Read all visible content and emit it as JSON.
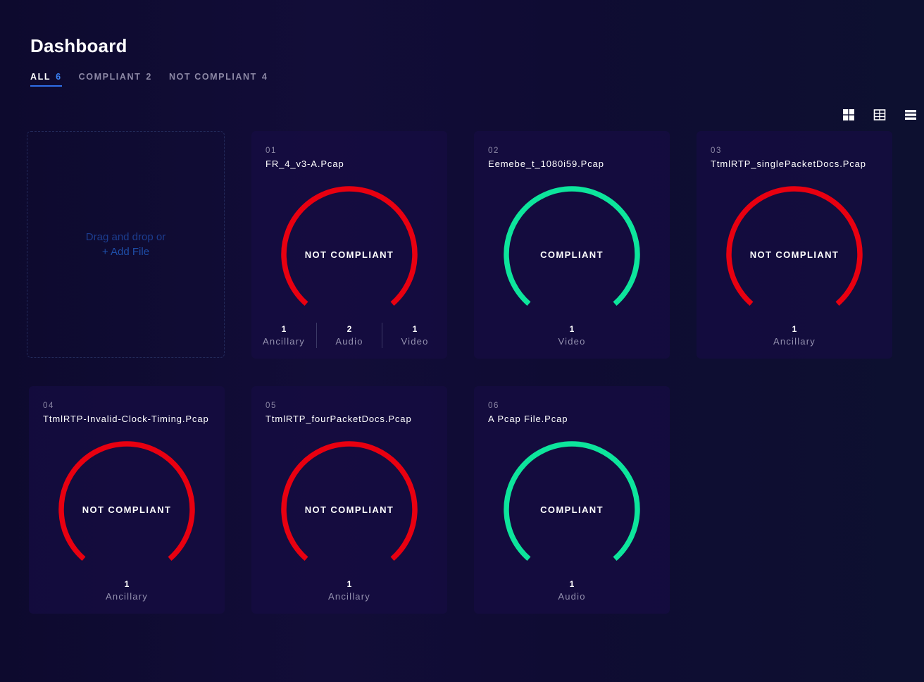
{
  "header": {
    "title": "Dashboard"
  },
  "tabs": [
    {
      "label": "ALL",
      "count": "6"
    },
    {
      "label": "COMPLIANT",
      "count": "2"
    },
    {
      "label": "NOT COMPLIANT",
      "count": "4"
    }
  ],
  "view_icons": [
    "grid-large-view-icon",
    "grid-small-view-icon",
    "list-view-icon"
  ],
  "dropzone": {
    "text": "Drag and drop or",
    "link": "+ Add File"
  },
  "colors": {
    "compliant": "#0de59c",
    "not_compliant": "#e80010",
    "accent": "#2f6ee8"
  },
  "cards": [
    {
      "number": "01",
      "filename": "FR_4_v3-A.Pcap",
      "status": "NOT COMPLIANT",
      "compliant": false,
      "stats": [
        {
          "value": "1",
          "label": "Ancillary"
        },
        {
          "value": "2",
          "label": "Audio"
        },
        {
          "value": "1",
          "label": "Video"
        }
      ]
    },
    {
      "number": "02",
      "filename": "Eemebe_t_1080i59.Pcap",
      "status": "COMPLIANT",
      "compliant": true,
      "stats": [
        {
          "value": "1",
          "label": "Video"
        }
      ]
    },
    {
      "number": "03",
      "filename": "TtmlRTP_singlePacketDocs.Pcap",
      "status": "NOT COMPLIANT",
      "compliant": false,
      "stats": [
        {
          "value": "1",
          "label": "Ancillary"
        }
      ]
    },
    {
      "number": "04",
      "filename": "TtmlRTP-Invalid-Clock-Timing.Pcap",
      "status": "NOT COMPLIANT",
      "compliant": false,
      "stats": [
        {
          "value": "1",
          "label": "Ancillary"
        }
      ]
    },
    {
      "number": "05",
      "filename": "TtmlRTP_fourPacketDocs.Pcap",
      "status": "NOT COMPLIANT",
      "compliant": false,
      "stats": [
        {
          "value": "1",
          "label": "Ancillary"
        }
      ]
    },
    {
      "number": "06",
      "filename": "A Pcap File.Pcap",
      "status": "COMPLIANT",
      "compliant": true,
      "stats": [
        {
          "value": "1",
          "label": "Audio"
        }
      ]
    }
  ]
}
